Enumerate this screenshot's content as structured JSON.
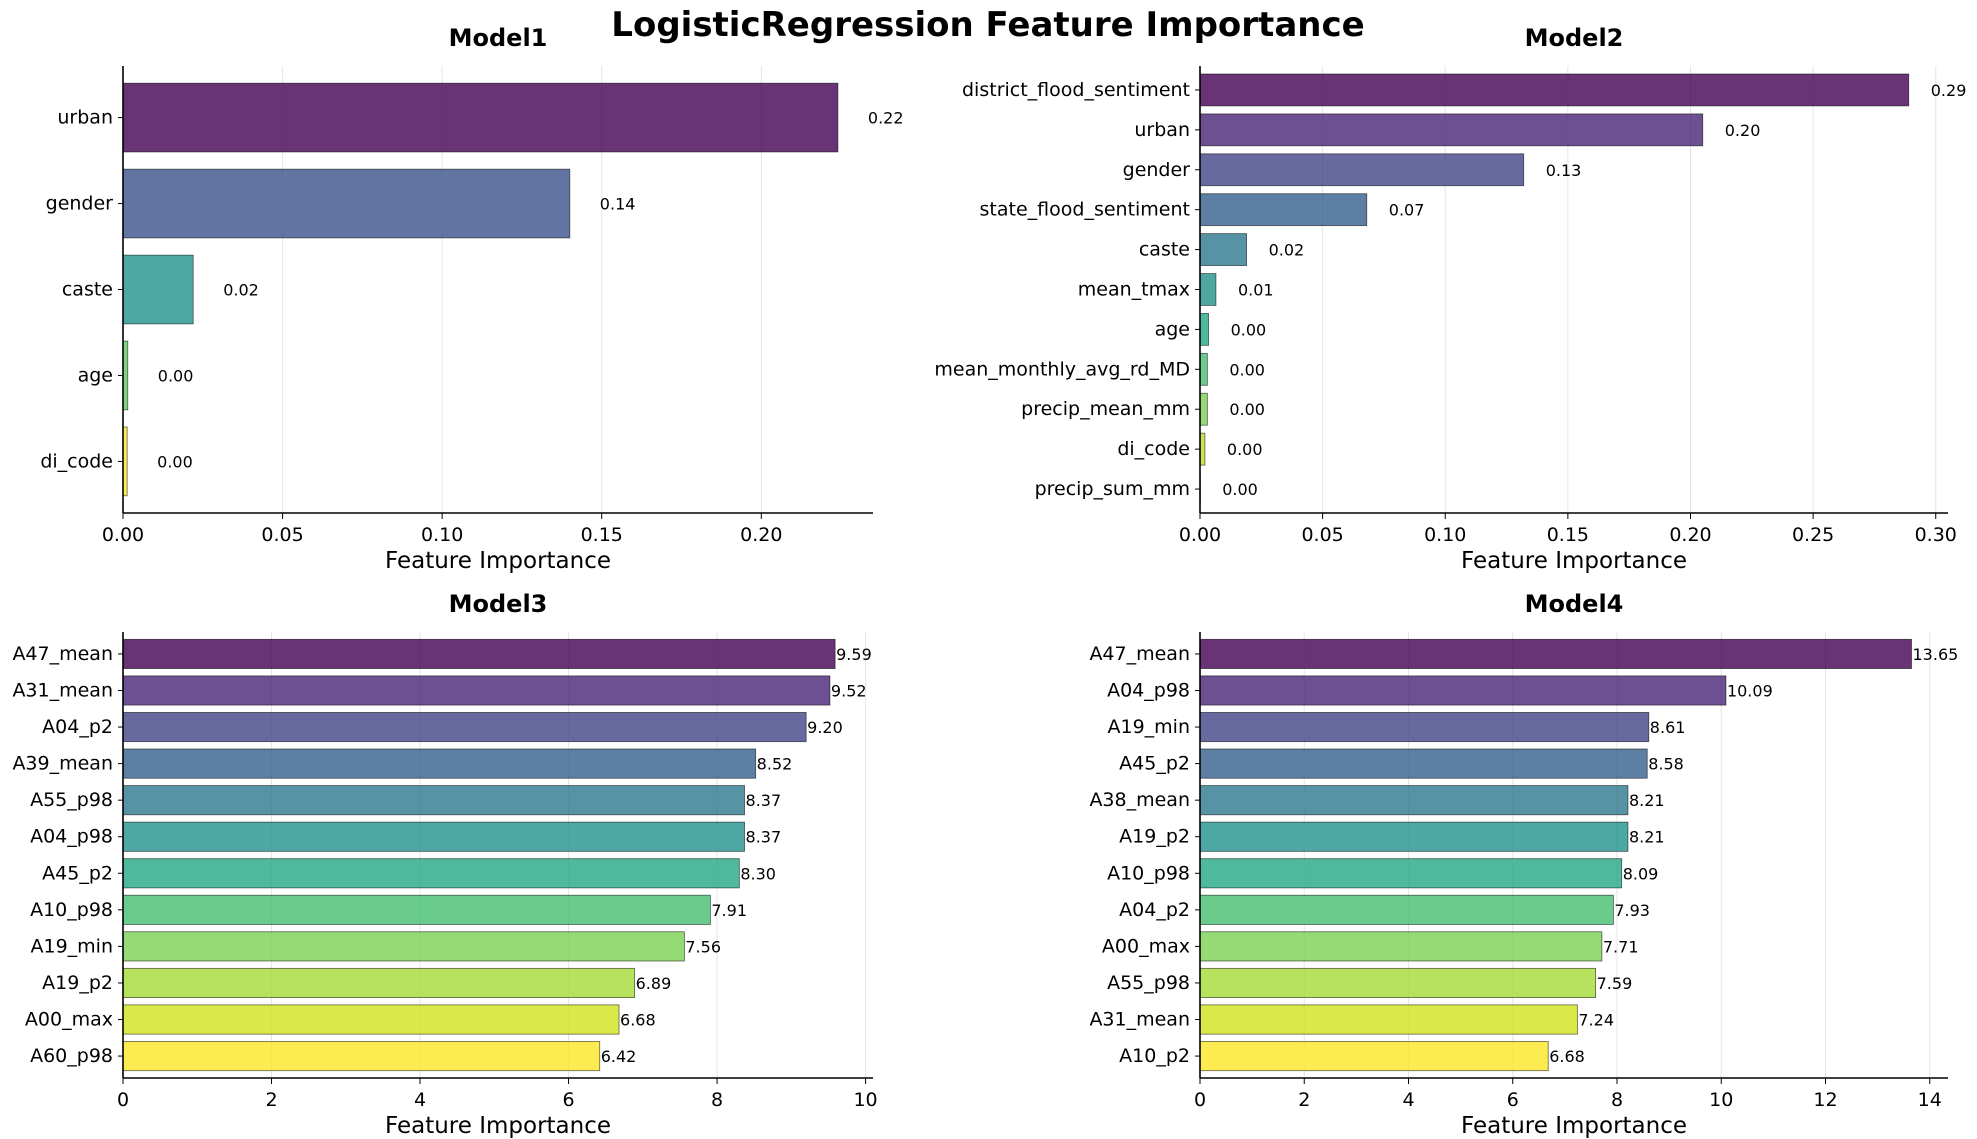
{
  "title": "LogisticRegression Feature Importance",
  "colors": {
    "palette5": [
      "#440154",
      "#3b528b",
      "#21918c",
      "#5ec962",
      "#fde725"
    ],
    "palette11": [
      "#440154",
      "#482475",
      "#414487",
      "#355f8d",
      "#2a788e",
      "#21918c",
      "#22a884",
      "#44bf70",
      "#7ad151",
      "#bddf26",
      "#fde725"
    ],
    "palette12": [
      "#440154",
      "#482475",
      "#414487",
      "#355f8d",
      "#2a788e",
      "#21918c",
      "#22a884",
      "#44bf70",
      "#7ad151",
      "#a5db36",
      "#d2e21b",
      "#fde725"
    ],
    "bar_opacity": 0.8,
    "axis": "#000000",
    "grid": "#e5e5e5"
  },
  "chart_data": [
    {
      "type": "bar",
      "orientation": "horizontal",
      "title": "Model1",
      "xlabel": "Feature Importance",
      "xlim": [
        0,
        0.235
      ],
      "xticks": [
        "0.00",
        "0.05",
        "0.10",
        "0.15",
        "0.20"
      ],
      "xtick_values": [
        0,
        0.05,
        0.1,
        0.15,
        0.2
      ],
      "grid": "x",
      "categories": [
        "urban",
        "gender",
        "caste",
        "age",
        "di_code"
      ],
      "values": [
        0.224,
        0.14,
        0.022,
        0.0015,
        0.0013
      ],
      "labels": [
        "0.22",
        "0.14",
        "0.02",
        "0.00",
        "0.00"
      ],
      "palette": "palette5"
    },
    {
      "type": "bar",
      "orientation": "horizontal",
      "title": "Model2",
      "xlabel": "Feature Importance",
      "xlim": [
        0,
        0.305
      ],
      "xticks": [
        "0.00",
        "0.05",
        "0.10",
        "0.15",
        "0.20",
        "0.25",
        "0.30"
      ],
      "xtick_values": [
        0,
        0.05,
        0.1,
        0.15,
        0.2,
        0.25,
        0.3
      ],
      "grid": "x",
      "categories": [
        "district_flood_sentiment",
        "urban",
        "gender",
        "state_flood_sentiment",
        "caste",
        "mean_tmax",
        "age",
        "mean_monthly_avg_rd_MD",
        "precip_mean_mm",
        "di_code",
        "precip_sum_mm"
      ],
      "values": [
        0.289,
        0.205,
        0.132,
        0.068,
        0.019,
        0.0065,
        0.0035,
        0.003,
        0.003,
        0.002,
        0.0001
      ],
      "labels": [
        "0.29",
        "0.20",
        "0.13",
        "0.07",
        "0.02",
        "0.01",
        "0.00",
        "0.00",
        "0.00",
        "0.00",
        "0.00"
      ],
      "palette": "palette11"
    },
    {
      "type": "bar",
      "orientation": "horizontal",
      "title": "Model3",
      "xlabel": "Feature Importance",
      "xlim": [
        0,
        10.1
      ],
      "xticks": [
        "0",
        "2",
        "4",
        "6",
        "8",
        "10"
      ],
      "xtick_values": [
        0,
        2,
        4,
        6,
        8,
        10
      ],
      "grid": "x",
      "categories": [
        "A47_mean",
        "A31_mean",
        "A04_p2",
        "A39_mean",
        "A55_p98",
        "A04_p98",
        "A45_p2",
        "A10_p98",
        "A19_min",
        "A19_p2",
        "A00_max",
        "A60_p98"
      ],
      "values": [
        9.59,
        9.52,
        9.2,
        8.52,
        8.37,
        8.37,
        8.3,
        7.91,
        7.56,
        6.89,
        6.68,
        6.42
      ],
      "labels": [
        "9.59",
        "9.52",
        "9.20",
        "8.52",
        "8.37",
        "8.37",
        "8.30",
        "7.91",
        "7.56",
        "6.89",
        "6.68",
        "6.42"
      ],
      "palette": "palette12"
    },
    {
      "type": "bar",
      "orientation": "horizontal",
      "title": "Model4",
      "xlabel": "Feature Importance",
      "xlim": [
        0,
        14.35
      ],
      "xticks": [
        "0",
        "2",
        "4",
        "6",
        "8",
        "10",
        "12",
        "14"
      ],
      "xtick_values": [
        0,
        2,
        4,
        6,
        8,
        10,
        12,
        14
      ],
      "grid": "x",
      "categories": [
        "A47_mean",
        "A04_p98",
        "A19_min",
        "A45_p2",
        "A38_mean",
        "A19_p2",
        "A10_p98",
        "A04_p2",
        "A00_max",
        "A55_p98",
        "A31_mean",
        "A10_p2"
      ],
      "values": [
        13.65,
        10.09,
        8.61,
        8.58,
        8.21,
        8.21,
        8.09,
        7.93,
        7.71,
        7.59,
        7.24,
        6.68
      ],
      "labels": [
        "13.65",
        "10.09",
        "8.61",
        "8.58",
        "8.21",
        "8.21",
        "8.09",
        "7.93",
        "7.71",
        "7.59",
        "7.24",
        "6.68"
      ],
      "palette": "palette12"
    }
  ]
}
